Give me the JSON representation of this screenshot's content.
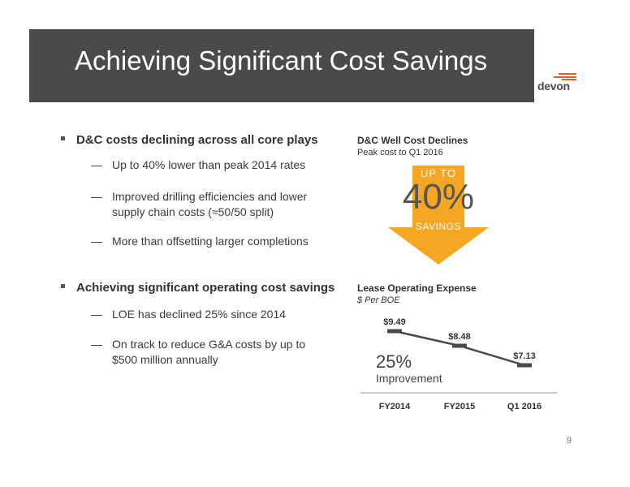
{
  "slide": {
    "title": "Achieving Significant Cost Savings",
    "page_number": "9",
    "logo_text": "devon"
  },
  "bullets": [
    {
      "text": "D&C costs declining across all core plays",
      "subs": [
        "Up to 40% lower than peak 2014 rates",
        "Improved drilling efficiencies and lower supply chain costs (≈50/50 split)",
        "More than offsetting larger completions"
      ]
    },
    {
      "text": "Achieving significant operating cost savings",
      "subs": [
        "LOE has declined 25% since 2014",
        "On track to reduce G&A costs by up to $500 million annually"
      ]
    }
  ],
  "dash": "—",
  "well_cost": {
    "title": "D&C Well Cost Declines",
    "subtitle": "Peak cost to Q1 2016",
    "arrow_top": "UP TO",
    "arrow_value": "40%",
    "arrow_bottom": "SAVINGS",
    "arrow_color": "#f5a623"
  },
  "loe": {
    "title": "Lease Operating Expense",
    "subtitle": "$ Per BOE",
    "improvement_value": "25%",
    "improvement_label": "Improvement"
  },
  "chart_data": {
    "type": "line",
    "title": "Lease Operating Expense",
    "ylabel": "$ Per BOE",
    "categories": [
      "FY2014",
      "FY2015",
      "Q1 2016"
    ],
    "values": [
      9.49,
      8.48,
      7.13
    ],
    "labels": [
      "$9.49",
      "$8.48",
      "$7.13"
    ],
    "ylim": [
      6.5,
      10
    ],
    "line_color": "#4a4a4a"
  }
}
